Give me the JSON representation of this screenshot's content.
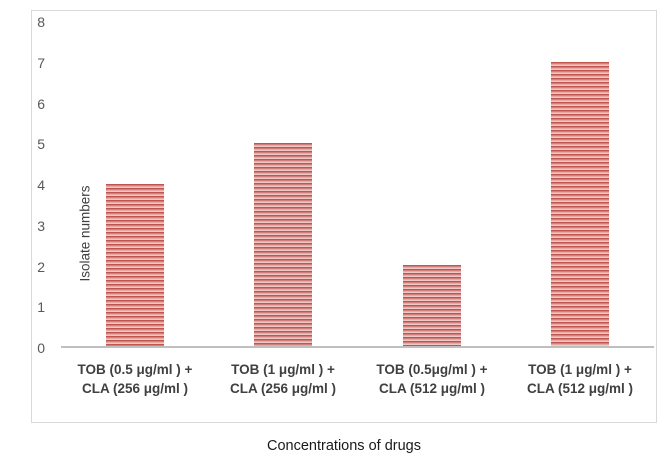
{
  "chart_data": {
    "type": "bar",
    "categories": [
      {
        "line1": "TOB (0.5 μg/ml ) +",
        "line2": "CLA (256 μg/ml )"
      },
      {
        "line1": "TOB (1 μg/ml ) +",
        "line2": "CLA (256 μg/ml )"
      },
      {
        "line1": "TOB (0.5μg/ml ) +",
        "line2": "CLA (512 μg/ml )"
      },
      {
        "line1": "TOB (1 μg/ml ) +",
        "line2": "CLA (512 μg/ml )"
      }
    ],
    "values": [
      4,
      5,
      2,
      7
    ],
    "title": "",
    "xlabel": "Concentrations of drugs",
    "ylabel": "Isolate numbers",
    "ylim": [
      0,
      8
    ],
    "yticks": [
      0,
      1,
      2,
      3,
      4,
      5,
      6,
      7,
      8
    ],
    "grid": "off",
    "legend": "none",
    "bar_pattern": "light-horizontal-stripes",
    "colors": {
      "stripe_dark": "#c0544f",
      "stripe_mid": "#e5a9a6",
      "stripe_light": "#f6e6e5",
      "axis_line": "#bfbfbf",
      "chart_border": "#d9d9d9",
      "tick_text": "#595959",
      "category_text": "#404040",
      "axis_title_text": "#1a1a1a"
    }
  }
}
